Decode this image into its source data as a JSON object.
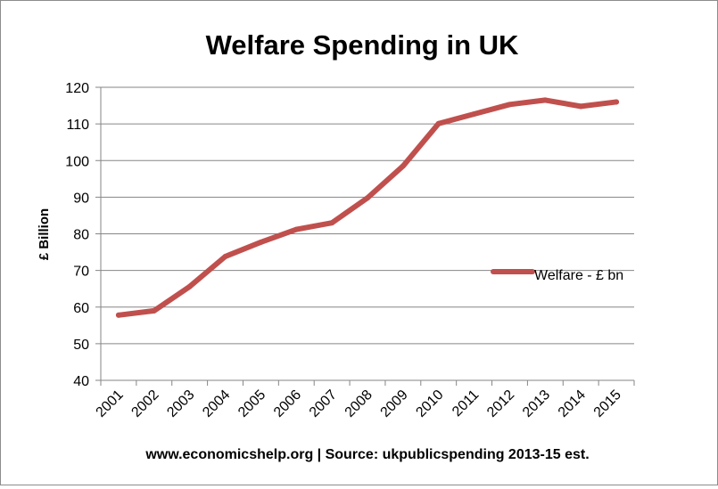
{
  "chart_data": {
    "type": "line",
    "title": "Welfare Spending in UK",
    "xlabel": "",
    "ylabel": "£ Billion",
    "categories": [
      "2001",
      "2002",
      "2003",
      "2004",
      "2005",
      "2006",
      "2007",
      "2008",
      "2009",
      "2010",
      "2011",
      "2012",
      "2013",
      "2014",
      "2015"
    ],
    "series": [
      {
        "name": "Welfare - £ bn",
        "color": "#c0504d",
        "values": [
          57.8,
          59.0,
          65.6,
          73.8,
          77.7,
          81.2,
          83.0,
          89.8,
          98.5,
          110.1,
          112.7,
          115.3,
          116.5,
          114.8,
          116.0
        ]
      }
    ],
    "ylim": [
      40,
      120
    ],
    "yticks": [
      40,
      50,
      60,
      70,
      80,
      90,
      100,
      110,
      120
    ],
    "grid": true,
    "legend_position": "right"
  },
  "footer": {
    "source_text": "www.economicshelp.org | Source: ukpublicspending 2013-15 est."
  }
}
